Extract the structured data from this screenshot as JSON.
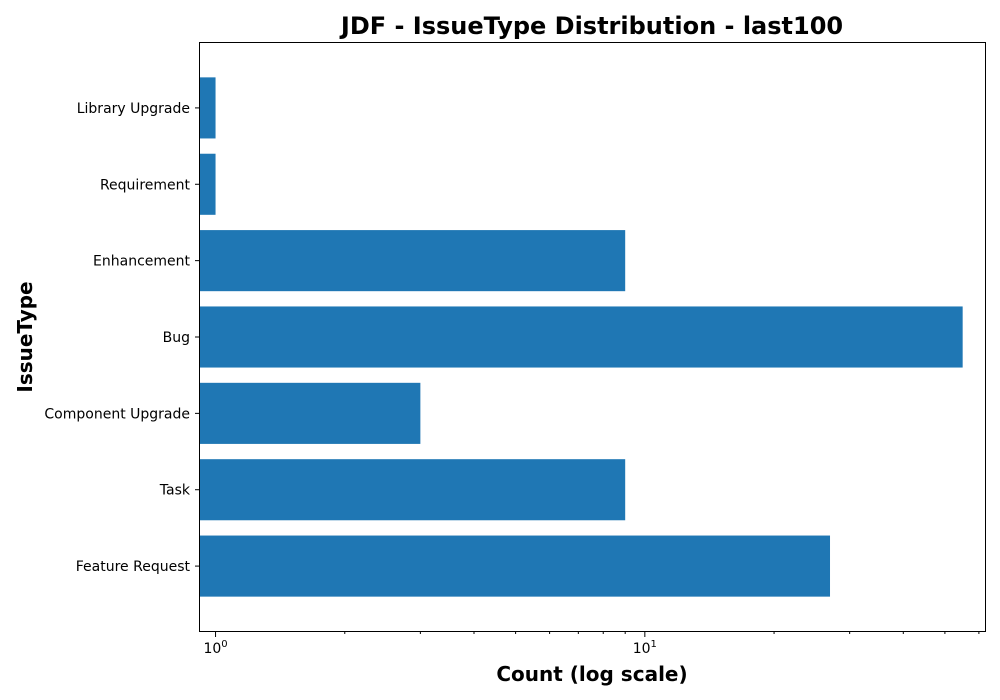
{
  "chart_data": {
    "type": "bar",
    "orientation": "horizontal",
    "title": "JDF - IssueType Distribution - last100",
    "xlabel": "Count (log scale)",
    "ylabel": "IssueType",
    "x_scale": "log",
    "xlim": [
      0.92,
      62
    ],
    "x_ticks": [
      {
        "value": 1,
        "base": "10",
        "exp": "0"
      },
      {
        "value": 10,
        "base": "10",
        "exp": "1"
      }
    ],
    "categories": [
      "Feature Request",
      "Task",
      "Component  Upgrade",
      "Bug",
      "Enhancement",
      "Requirement",
      "Library Upgrade"
    ],
    "values": [
      27,
      9,
      3,
      55,
      9,
      1,
      1
    ],
    "bar_color": "#1f77b4",
    "grid": false,
    "legend": "none"
  }
}
